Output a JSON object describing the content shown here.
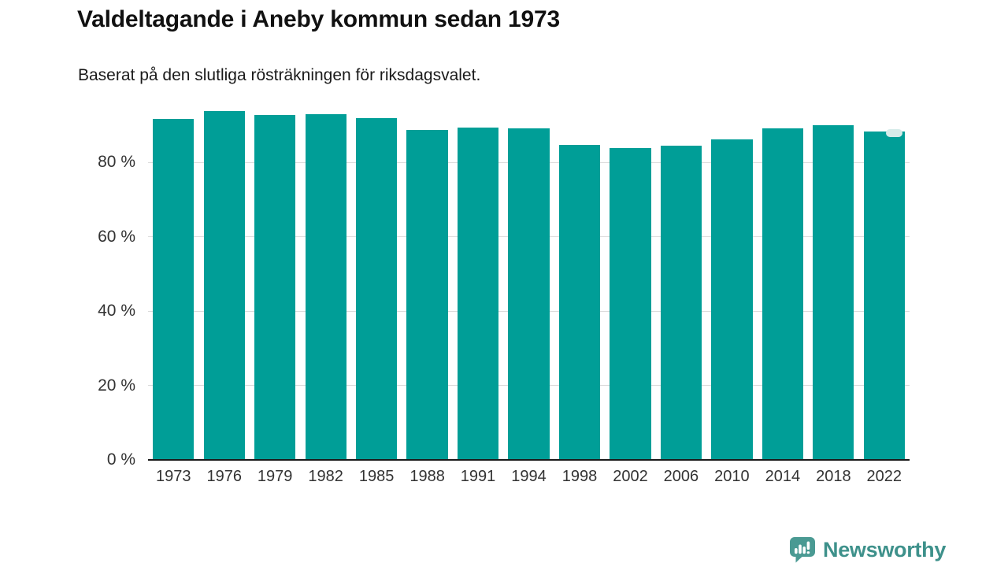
{
  "header": {
    "title": "Valdeltagande i Aneby kommun sedan 1973",
    "subtitle": "Baserat på den slutliga rösträkningen för riksdagsvalet."
  },
  "chart_data": {
    "type": "bar",
    "title": "Valdeltagande i Aneby kommun sedan 1973",
    "subtitle": "Baserat på den slutliga rösträkningen för riksdagsvalet.",
    "categories": [
      "1973",
      "1976",
      "1979",
      "1982",
      "1985",
      "1988",
      "1991",
      "1994",
      "1998",
      "2002",
      "2006",
      "2010",
      "2014",
      "2018",
      "2022"
    ],
    "values": [
      91.7,
      93.8,
      92.7,
      93.1,
      91.9,
      88.8,
      89.5,
      89.2,
      84.8,
      83.8,
      84.6,
      86.2,
      89.1,
      90.0,
      88.3
    ],
    "unit": "%",
    "xlabel": "",
    "ylabel": "",
    "ylim": [
      0,
      100
    ],
    "yticks": [
      0,
      20,
      40,
      60,
      80
    ],
    "ytick_labels": [
      "0 %",
      "20 %",
      "40 %",
      "60 %",
      "80 %"
    ],
    "grid": true,
    "legend": false,
    "bar_color": "#009e97",
    "gridline_color": "#dcdcdc",
    "axis_line_color": "#1a1a1a",
    "last_bar_badge_color": "#d6ebe9"
  },
  "branding": {
    "logo_text": "Newsworthy",
    "logo_icon": "newsworthy-speech-bubble-bar-chart-icon",
    "logo_color": "#3e918b"
  }
}
